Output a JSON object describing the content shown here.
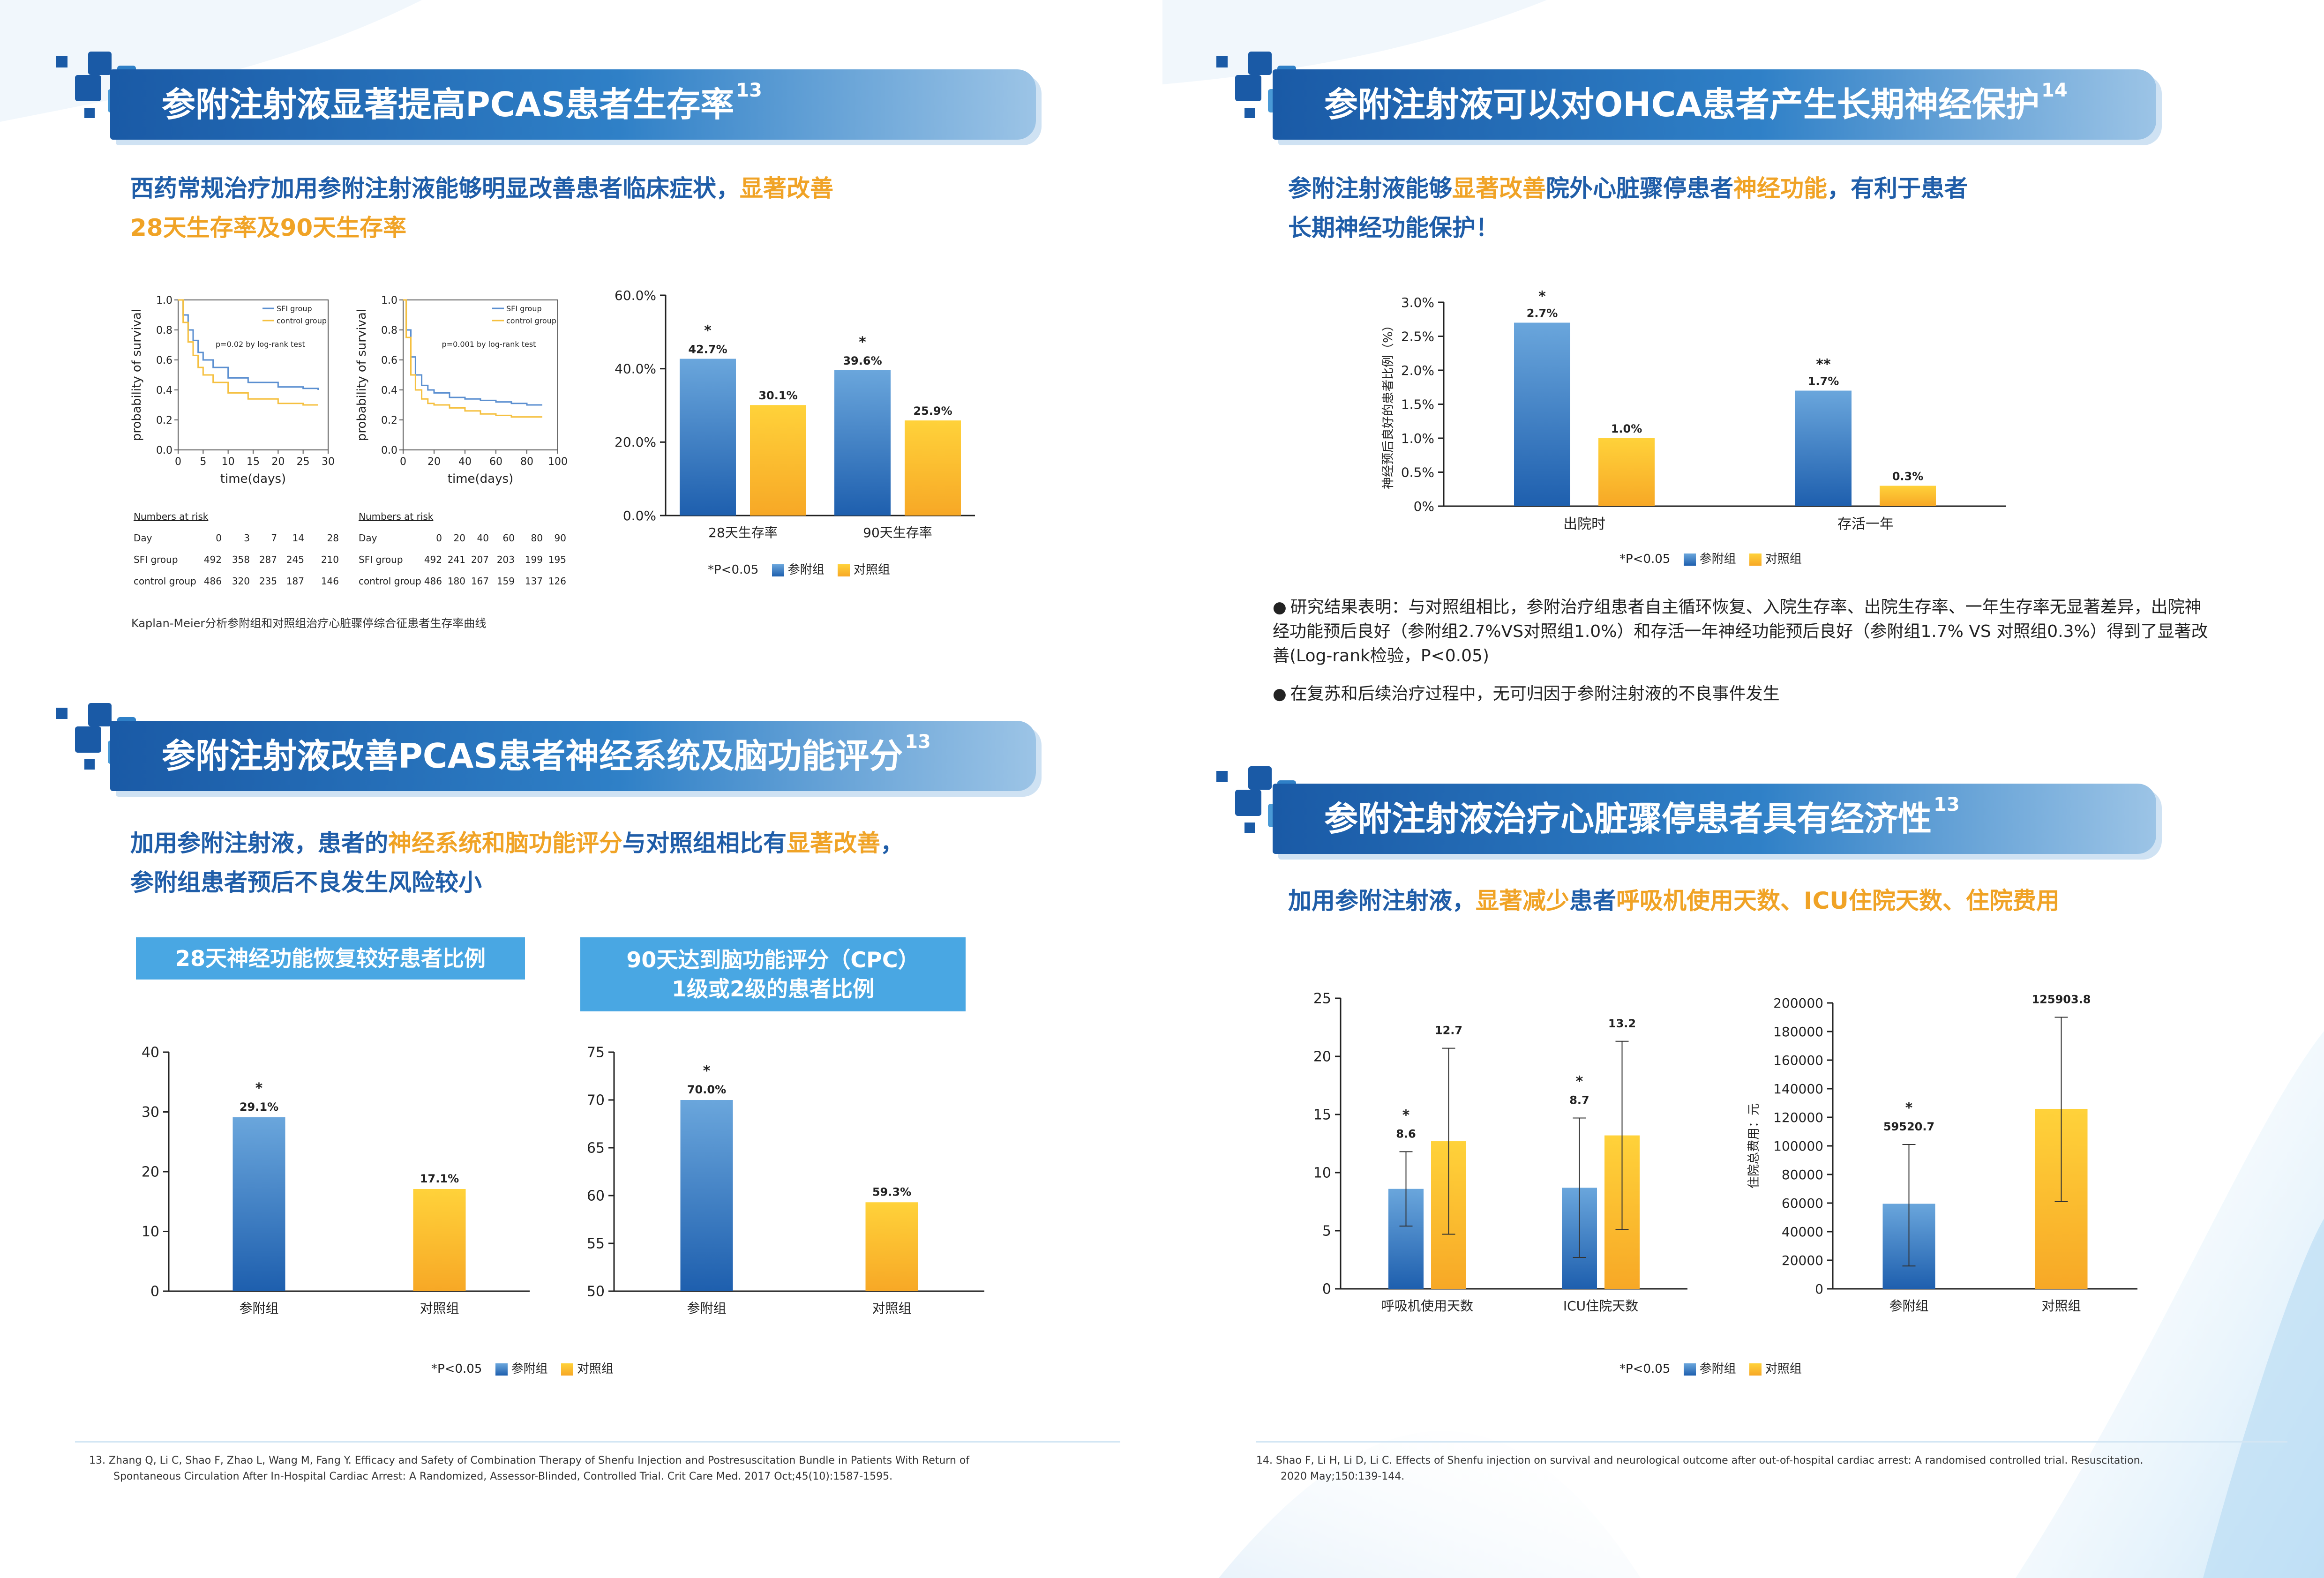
{
  "sections": {
    "s1": {
      "title": "参附注射液显著提高PCAS患者生存率",
      "ref_mark": "13",
      "lead_parts": [
        "西药常规治疗加用参附注射液能够明显改善患者临床症状，",
        "显著改善",
        "28天生存率及90天生存率"
      ],
      "km_caption": "Kaplan-Meier分析参附组和对照组治疗心脏骤停综合征患者生存率曲线",
      "risk1": {
        "title": "Numbers at risk",
        "rows": [
          {
            "label": "Day",
            "values": [
              "0",
              "3",
              "7",
              "14",
              "28"
            ]
          },
          {
            "label": "SFI group",
            "values": [
              "492",
              "358",
              "287",
              "245",
              "210"
            ]
          },
          {
            "label": "control group",
            "values": [
              "486",
              "320",
              "235",
              "187",
              "146"
            ]
          }
        ]
      },
      "risk2": {
        "title": "Numbers at risk",
        "rows": [
          {
            "label": "Day",
            "values": [
              "0",
              "20",
              "40",
              "60",
              "80",
              "90"
            ]
          },
          {
            "label": "SFI group",
            "values": [
              "492",
              "241",
              "207",
              "203",
              "199",
              "195"
            ]
          },
          {
            "label": "control group",
            "values": [
              "486",
              "180",
              "167",
              "159",
              "137",
              "126"
            ]
          }
        ]
      }
    },
    "s2": {
      "title": "参附注射液可以对OHCA患者产生长期神经保护",
      "ref_mark": "14",
      "lead_parts": [
        "参附注射液能够",
        "显著改善",
        "院外心脏骤停患者",
        "神经功能",
        "，有利于患者",
        "长期神经功能保护！"
      ],
      "bullets": [
        "研究结果表明：与对照组相比，参附治疗组患者自主循环恢复、入院生存率、出院生存率、一年生存率无显著差异，出院神经功能预后良好（参附组2.7%VS对照组1.0%）和存活一年神经功能预后良好（参附组1.7% VS 对照组0.3%）得到了显著改善(Log-rank检验，P<0.05)",
        "在复苏和后续治疗过程中，无可归因于参附注射液的不良事件发生"
      ]
    },
    "s3": {
      "title": "参附注射液改善PCAS患者神经系统及脑功能评分",
      "ref_mark": "13",
      "lead_parts": [
        "加用参附注射液，患者的",
        "神经系统和脑功能评分",
        "与对照组相比有",
        "显著改善",
        "，",
        "参附组患者预后不良发生风险较小"
      ],
      "subhead1": "28天神经功能恢复较好患者比例",
      "subhead2_line1": "90天达到脑功能评分（CPC）",
      "subhead2_line2": "1级或2级的患者比例"
    },
    "s4": {
      "title": "参附注射液治疗心脏骤停患者具有经济性",
      "ref_mark": "13",
      "lead_parts": [
        "加用参附注射液，",
        "显著减少",
        "患者",
        "呼吸机使用天数、ICU住院天数、住院费用"
      ]
    }
  },
  "legend": {
    "note": "*P<0.05",
    "group1": "参附组",
    "group2": "对照组"
  },
  "colors": {
    "blue_top": "#6aa6dc",
    "blue_bottom": "#1e5fae",
    "yellow_top": "#ffd23a",
    "yellow_bottom": "#f7a826",
    "km_sfi": "#5b8fd0",
    "km_ctrl": "#f5c040"
  },
  "references": {
    "r13_line1": "13. Zhang Q, Li C, Shao F, Zhao L, Wang M, Fang Y. Efficacy and Safety of Combination Therapy of Shenfu Injection and Postresuscitation Bundle in Patients With Return of",
    "r13_line2": "Spontaneous Circulation After In-Hospital Cardiac Arrest: A Randomized, Assessor-Blinded, Controlled Trial. Crit Care Med. 2017 Oct;45(10):1587-1595.",
    "r14_line1": "14. Shao F, Li H, Li D, Li C. Effects of Shenfu injection on survival and neurological outcome after out-of-hospital cardiac arrest: A randomised controlled trial. Resuscitation.",
    "r14_line2": "2020 May;150:139-144."
  },
  "chart_data": [
    {
      "id": "km28",
      "type": "line",
      "xlabel": "time(days)",
      "ylabel": "probability of survival",
      "xlim": [
        0,
        30
      ],
      "ylim": [
        0,
        1.0
      ],
      "xticks": [
        0,
        5,
        10,
        15,
        20,
        25,
        30
      ],
      "yticks": [
        0,
        0.2,
        0.4,
        0.6,
        0.8,
        1.0
      ],
      "annotation": "p=0.02 by log-rank test",
      "series": [
        {
          "name": "SFI group",
          "x": [
            0,
            1,
            2,
            3,
            4,
            5,
            7,
            10,
            14,
            20,
            25,
            28
          ],
          "y": [
            1.0,
            0.9,
            0.8,
            0.73,
            0.65,
            0.6,
            0.55,
            0.48,
            0.45,
            0.42,
            0.41,
            0.4
          ]
        },
        {
          "name": "control group",
          "x": [
            0,
            1,
            2,
            3,
            4,
            5,
            7,
            10,
            14,
            20,
            25,
            28
          ],
          "y": [
            1.0,
            0.85,
            0.72,
            0.63,
            0.55,
            0.5,
            0.45,
            0.38,
            0.34,
            0.31,
            0.3,
            0.3
          ]
        }
      ]
    },
    {
      "id": "km90",
      "type": "line",
      "xlabel": "time(days)",
      "ylabel": "probability of survival",
      "xlim": [
        0,
        100
      ],
      "ylim": [
        0,
        1.0
      ],
      "xticks": [
        0,
        20,
        40,
        60,
        80,
        100
      ],
      "yticks": [
        0,
        0.2,
        0.4,
        0.6,
        0.8,
        1.0
      ],
      "annotation": "p=0.001 by log-rank test",
      "series": [
        {
          "name": "SFI group",
          "x": [
            0,
            2,
            5,
            8,
            12,
            16,
            20,
            30,
            40,
            50,
            60,
            70,
            80,
            90
          ],
          "y": [
            1.0,
            0.8,
            0.62,
            0.5,
            0.43,
            0.4,
            0.38,
            0.35,
            0.34,
            0.33,
            0.32,
            0.31,
            0.3,
            0.3
          ]
        },
        {
          "name": "control group",
          "x": [
            0,
            2,
            5,
            8,
            12,
            16,
            20,
            30,
            40,
            50,
            60,
            70,
            80,
            90
          ],
          "y": [
            1.0,
            0.75,
            0.5,
            0.4,
            0.34,
            0.31,
            0.3,
            0.28,
            0.26,
            0.24,
            0.23,
            0.22,
            0.22,
            0.22
          ]
        }
      ]
    },
    {
      "id": "surv",
      "type": "bar",
      "categories": [
        "28天生存率",
        "90天生存率"
      ],
      "series": [
        {
          "name": "参附组",
          "values": [
            42.7,
            39.6
          ]
        },
        {
          "name": "对照组",
          "values": [
            30.1,
            25.9
          ]
        }
      ],
      "labels": [
        [
          "42.7%",
          "39.6%"
        ],
        [
          "30.1%",
          "25.9%"
        ]
      ],
      "stars": [
        [
          "*",
          "*"
        ],
        [
          "",
          ""
        ]
      ],
      "ylim": [
        0,
        60
      ],
      "yticks": [
        0,
        20,
        40,
        60
      ],
      "ytick_labels": [
        "0.0%",
        "20.0%",
        "40.0%",
        "60.0%"
      ]
    },
    {
      "id": "neuro",
      "type": "bar",
      "categories": [
        "出院时",
        "存活一年"
      ],
      "series": [
        {
          "name": "参附组",
          "values": [
            2.7,
            1.7
          ]
        },
        {
          "name": "对照组",
          "values": [
            1.0,
            0.3
          ]
        }
      ],
      "labels": [
        [
          "2.7%",
          "1.7%"
        ],
        [
          "1.0%",
          "0.3%"
        ]
      ],
      "stars": [
        [
          "*",
          "**"
        ],
        [
          "",
          ""
        ]
      ],
      "ylabel": "神经预后良好的患者比例（%）",
      "ylim": [
        0,
        3.0
      ],
      "yticks": [
        0,
        0.5,
        1.0,
        1.5,
        2.0,
        2.5,
        3.0
      ],
      "ytick_labels": [
        "0%",
        "0.5%",
        "1.0%",
        "1.5%",
        "2.0%",
        "2.5%",
        "3.0%"
      ]
    },
    {
      "id": "n28",
      "type": "bar",
      "categories": [
        "参附组",
        "对照组"
      ],
      "values": [
        29.1,
        17.1
      ],
      "labels": [
        "29.1%",
        "17.1%"
      ],
      "stars": [
        "*",
        ""
      ],
      "ylim": [
        0,
        40
      ],
      "yticks": [
        0,
        10,
        20,
        30,
        40
      ],
      "ytick_labels": [
        "0",
        "10",
        "20",
        "30",
        "40"
      ]
    },
    {
      "id": "cpc",
      "type": "bar",
      "categories": [
        "参附组",
        "对照组"
      ],
      "values": [
        70.0,
        59.3
      ],
      "labels": [
        "70.0%",
        "59.3%"
      ],
      "stars": [
        "*",
        ""
      ],
      "ylim": [
        50,
        75
      ],
      "yticks": [
        50,
        55,
        60,
        65,
        70,
        75
      ],
      "ytick_labels": [
        "50",
        "55",
        "60",
        "65",
        "70",
        "75"
      ]
    },
    {
      "id": "days",
      "type": "bar",
      "categories": [
        "呼吸机使用天数",
        "ICU住院天数"
      ],
      "series": [
        {
          "name": "参附组",
          "values": [
            8.6,
            8.7
          ]
        },
        {
          "name": "对照组",
          "values": [
            12.7,
            13.2
          ]
        }
      ],
      "labels": [
        [
          "8.6",
          "8.7"
        ],
        [
          "12.7",
          "13.2"
        ]
      ],
      "stars": [
        [
          "*",
          "*"
        ],
        [
          "",
          ""
        ]
      ],
      "errors": [
        [
          [
            5.4,
            11.8
          ],
          [
            2.7,
            14.7
          ]
        ],
        [
          [
            4.7,
            20.7
          ],
          [
            5.1,
            21.3
          ]
        ]
      ],
      "ylim": [
        0,
        25
      ],
      "yticks": [
        0,
        5,
        10,
        15,
        20,
        25
      ],
      "ytick_labels": [
        "0",
        "5",
        "10",
        "15",
        "20",
        "25"
      ]
    },
    {
      "id": "cost",
      "type": "bar",
      "categories": [
        "参附组",
        "对照组"
      ],
      "values": [
        59520.7,
        125903.8
      ],
      "labels": [
        "59520.7",
        "125903.8"
      ],
      "stars": [
        "*",
        ""
      ],
      "errors": [
        [
          16000,
          101000
        ],
        [
          61000,
          190000
        ]
      ],
      "ylabel": "住院总费用：元",
      "ylim": [
        0,
        200000
      ],
      "yticks": [
        0,
        20000,
        40000,
        60000,
        80000,
        100000,
        120000,
        140000,
        160000,
        180000,
        200000
      ],
      "ytick_labels": [
        "0",
        "20000",
        "40000",
        "60000",
        "80000",
        "100000",
        "120000",
        "140000",
        "160000",
        "180000",
        "200000"
      ]
    }
  ]
}
